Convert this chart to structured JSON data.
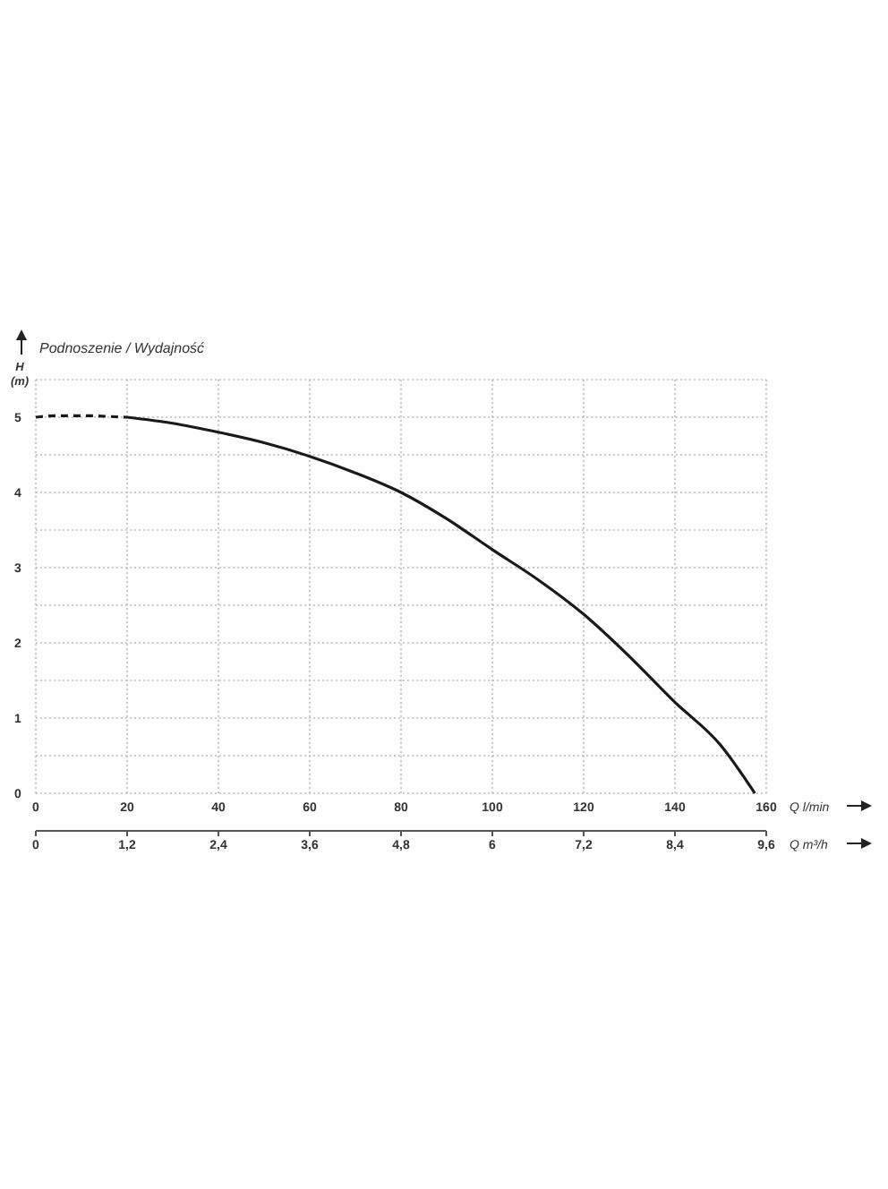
{
  "chart_data": {
    "type": "line",
    "title": "Podnoszenie / Wydajność",
    "ylabel": "H (m)",
    "xlabel": "Q l/min",
    "x2label": "Q m³/h",
    "xlim": [
      0,
      160
    ],
    "xticks": [
      0,
      20,
      40,
      60,
      80,
      100,
      120,
      140,
      160
    ],
    "x2lim": [
      0,
      9.6
    ],
    "x2ticks": [
      0,
      {
        "value": 1.2,
        "label": "1,2"
      },
      {
        "value": 2.4,
        "label": "2,4"
      },
      {
        "value": 3.6,
        "label": "3,6"
      },
      {
        "value": 4.8,
        "label": "4,8"
      },
      6,
      {
        "value": 7.2,
        "label": "7,2"
      },
      {
        "value": 8.4,
        "label": "8,4"
      },
      {
        "value": 9.6,
        "label": "9,6"
      }
    ],
    "ylim": [
      0,
      5.5
    ],
    "yticks": [
      0,
      {
        "value": 0.5,
        "label": null
      },
      1,
      {
        "value": 1.5,
        "label": null
      },
      2,
      {
        "value": 2.5,
        "label": null
      },
      3,
      {
        "value": 3.5,
        "label": null
      },
      4,
      {
        "value": 4.5,
        "label": null
      },
      5,
      {
        "value": 5.5,
        "label": null
      }
    ],
    "grid": true,
    "series": [
      {
        "color": "#1a1a1a",
        "line_style": "dashed",
        "x": [
          0,
          4,
          8,
          12,
          16,
          20
        ],
        "values": [
          5.0,
          5.02,
          5.02,
          5.02,
          5.01,
          5.0
        ]
      },
      {
        "color": "#1a1a1a",
        "line_style": "solid",
        "x": [
          20,
          30,
          40,
          50,
          60,
          70,
          80,
          90,
          100,
          110,
          120,
          130,
          140,
          150,
          157.5
        ],
        "values": [
          5.0,
          4.92,
          4.8,
          4.66,
          4.48,
          4.26,
          4.0,
          3.65,
          3.24,
          2.84,
          2.38,
          1.82,
          1.21,
          0.64,
          0
        ]
      }
    ]
  }
}
